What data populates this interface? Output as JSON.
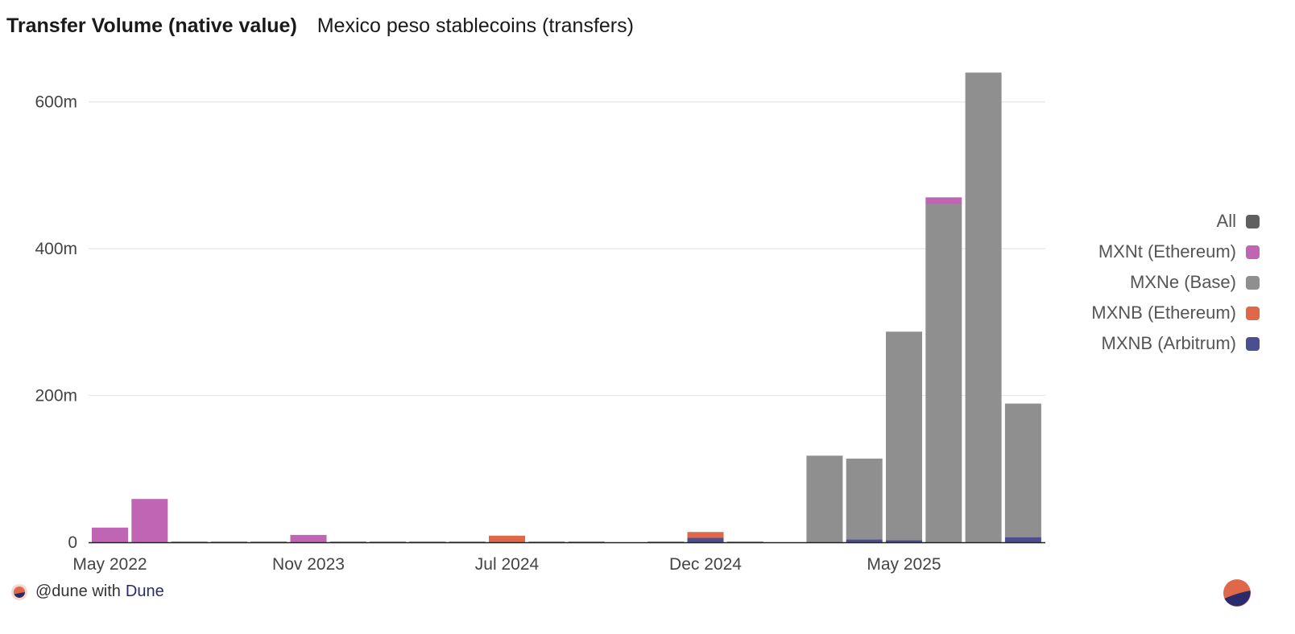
{
  "header": {
    "title": "Transfer Volume (native value)",
    "subtitle": "Mexico peso stablecoins (transfers)"
  },
  "colors": {
    "all": "#5f5f5f",
    "mxnt_ethereum": "#c064b4",
    "mxne_base": "#8f8f8f",
    "mxnb_ethereum": "#e0684a",
    "mxnb_arbitrum": "#4b4f92",
    "grid": "#e6e6e6",
    "axis": "#222222"
  },
  "legend": {
    "items": [
      {
        "label": "All",
        "color_key": "all"
      },
      {
        "label": "MXNt (Ethereum)",
        "color_key": "mxnt_ethereum"
      },
      {
        "label": "MXNe (Base)",
        "color_key": "mxne_base"
      },
      {
        "label": "MXNB (Ethereum)",
        "color_key": "mxnb_ethereum"
      },
      {
        "label": "MXNB (Arbitrum)",
        "color_key": "mxnb_arbitrum"
      }
    ]
  },
  "footer": {
    "handle": "@dune with",
    "brand": "Dune"
  },
  "chart_data": {
    "type": "bar",
    "stacked": true,
    "title": "Transfer Volume (native value)",
    "subtitle": "Mexico peso stablecoins (transfers)",
    "xlabel": "",
    "ylabel": "",
    "ylim": [
      0,
      660
    ],
    "y_unit": "m",
    "y_ticks": [
      0,
      200,
      400,
      600
    ],
    "y_tick_labels": [
      "0",
      "200m",
      "400m",
      "600m"
    ],
    "x_tick_labels": [
      {
        "label": "May 2022",
        "index": 0
      },
      {
        "label": "Nov 2023",
        "index": 5
      },
      {
        "label": "Jul 2024",
        "index": 10
      },
      {
        "label": "Dec 2024",
        "index": 15
      },
      {
        "label": "May 2025",
        "index": 20
      }
    ],
    "legend_position": "right",
    "grid": true,
    "categories": [
      "b0",
      "b1",
      "b2",
      "b3",
      "b4",
      "b5",
      "b6",
      "b7",
      "b8",
      "b9",
      "b10",
      "b11",
      "b12",
      "b13",
      "b14",
      "b15",
      "b16",
      "b17",
      "b18",
      "b19",
      "b20",
      "b21",
      "b22",
      "b23"
    ],
    "series": [
      {
        "name": "MXNB (Arbitrum)",
        "color_key": "mxnb_arbitrum",
        "values": [
          0,
          0,
          0,
          0,
          0,
          0,
          0,
          0,
          0,
          0,
          0,
          0,
          0,
          0,
          0,
          6,
          0,
          0,
          0,
          4,
          3,
          0,
          0,
          7
        ]
      },
      {
        "name": "MXNB (Ethereum)",
        "color_key": "mxnb_ethereum",
        "values": [
          0,
          0,
          0,
          0,
          0,
          0,
          0,
          0,
          0,
          0,
          9,
          1,
          1,
          0,
          1,
          8,
          1,
          0,
          0,
          0,
          0,
          0,
          0,
          0
        ]
      },
      {
        "name": "MXNe (Base)",
        "color_key": "mxne_base",
        "values": [
          0,
          0,
          0,
          0,
          0,
          0,
          0,
          0,
          0,
          0,
          0,
          0,
          0,
          0,
          0,
          0,
          0,
          0,
          118,
          110,
          284,
          461,
          640,
          182
        ]
      },
      {
        "name": "MXNt (Ethereum)",
        "color_key": "mxnt_ethereum",
        "values": [
          20,
          59,
          1,
          1,
          1,
          10,
          1,
          1,
          1,
          1,
          0,
          0,
          0,
          0,
          0,
          0,
          0,
          0,
          0,
          0,
          0,
          9,
          0,
          0
        ]
      }
    ]
  }
}
